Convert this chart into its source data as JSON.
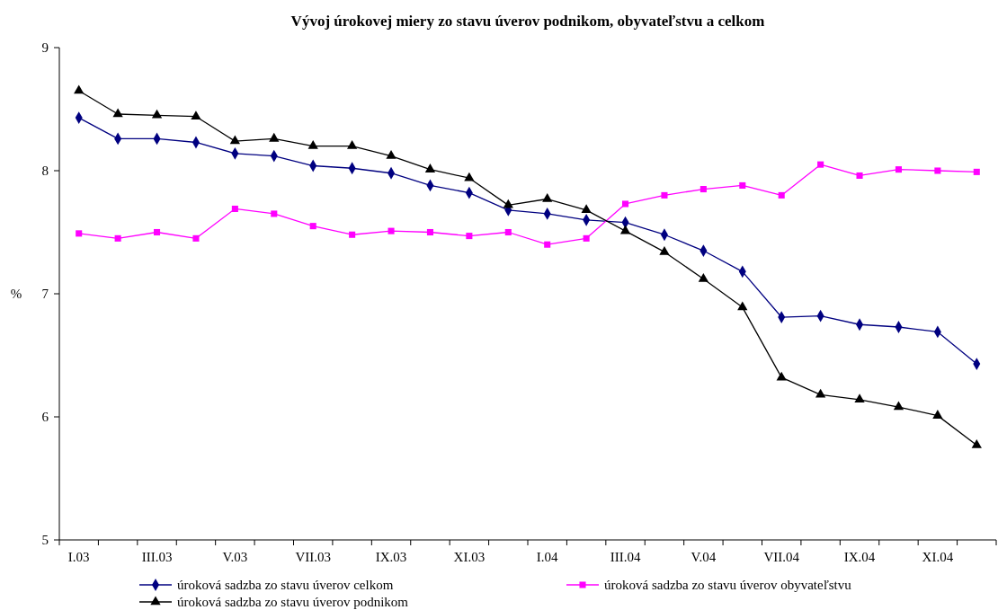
{
  "chart_data": {
    "type": "line",
    "title": "Vývoj úrokovej miery zo stavu úverov podnikom, obyvateľstvu a celkom",
    "ylabel": "%",
    "categories": [
      "I.03",
      null,
      "III.03",
      null,
      "V.03",
      null,
      "VII.03",
      null,
      "IX.03",
      null,
      "XI.03",
      null,
      "I.04",
      null,
      "III.04",
      null,
      "V.04",
      null,
      "VII.04",
      null,
      "IX.04",
      null,
      "XI.04",
      null
    ],
    "ylim": [
      5,
      9
    ],
    "yticks": [
      5,
      6,
      7,
      8,
      9
    ],
    "grid": false,
    "legend": "bottom",
    "series": [
      {
        "name": "úroková sadzba zo stavu úverov celkom",
        "color": "#000080",
        "marker": "diamond",
        "values": [
          8.43,
          8.26,
          8.26,
          8.23,
          8.14,
          8.12,
          8.04,
          8.02,
          7.98,
          7.88,
          7.82,
          7.68,
          7.65,
          7.6,
          7.58,
          7.48,
          7.35,
          7.18,
          6.81,
          6.82,
          6.75,
          6.73,
          6.69,
          6.43
        ]
      },
      {
        "name": "úroková sadzba zo stavu úverov obyvateľstvu",
        "color": "#ff00ff",
        "marker": "square",
        "values": [
          7.49,
          7.45,
          7.5,
          7.45,
          7.69,
          7.65,
          7.55,
          7.48,
          7.51,
          7.5,
          7.47,
          7.5,
          7.4,
          7.45,
          7.73,
          7.8,
          7.85,
          7.88,
          7.8,
          8.05,
          7.96,
          8.01,
          8.0,
          7.99
        ]
      },
      {
        "name": "úroková sadzba zo stavu úverov podnikom",
        "color": "#000000",
        "marker": "triangle",
        "values": [
          8.65,
          8.46,
          8.45,
          8.44,
          8.24,
          8.26,
          8.2,
          8.2,
          8.12,
          8.01,
          7.94,
          7.72,
          7.77,
          7.68,
          7.51,
          7.34,
          7.12,
          6.89,
          6.32,
          6.18,
          6.14,
          6.08,
          6.01,
          5.77
        ]
      }
    ]
  }
}
